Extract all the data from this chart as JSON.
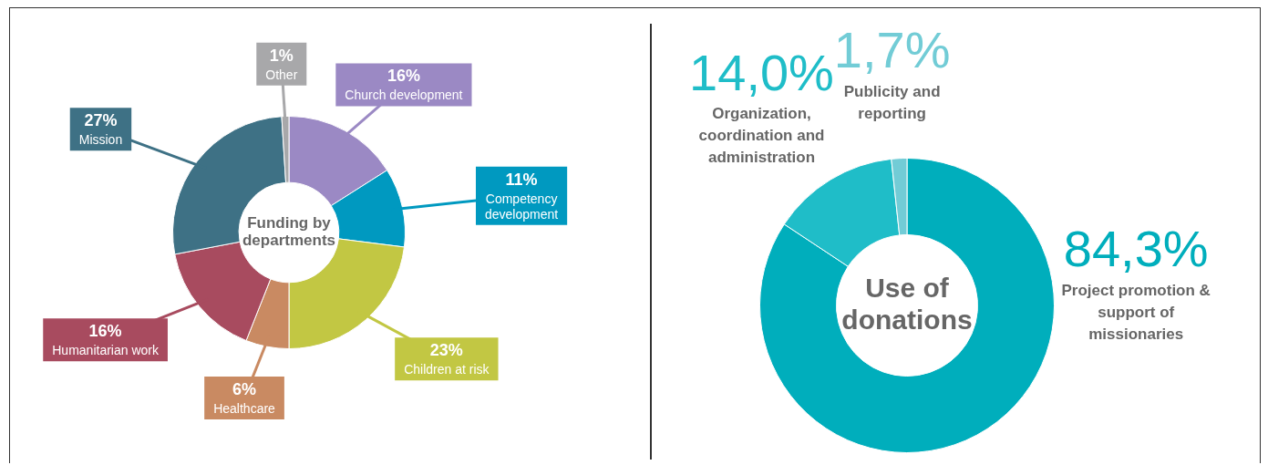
{
  "chart_data": [
    {
      "type": "donut",
      "title": "Funding by departments",
      "categories": [
        "Church development",
        "Competency development",
        "Children at risk",
        "Healthcare",
        "Humanitarian work",
        "Mission",
        "Other"
      ],
      "values": [
        16,
        11,
        23,
        6,
        16,
        27,
        1
      ],
      "value_labels": [
        "16%",
        "11%",
        "23%",
        "6%",
        "16%",
        "27%",
        "1%"
      ],
      "colors": [
        "#9b89c4",
        "#0099c0",
        "#c2c743",
        "#c98a62",
        "#a84b5f",
        "#3e7185",
        "#a8a8aa"
      ]
    },
    {
      "type": "donut",
      "title": "Use of donations",
      "categories": [
        "Project promotion & support of missionaries",
        "Organization, coordination and administration",
        "Publicity and reporting"
      ],
      "values": [
        84.3,
        14.0,
        1.7
      ],
      "value_labels": [
        "84,3%",
        "14,0%",
        "1,7%"
      ],
      "colors": [
        "#00aebc",
        "#1fbdc8",
        "#72ccd6"
      ]
    }
  ]
}
